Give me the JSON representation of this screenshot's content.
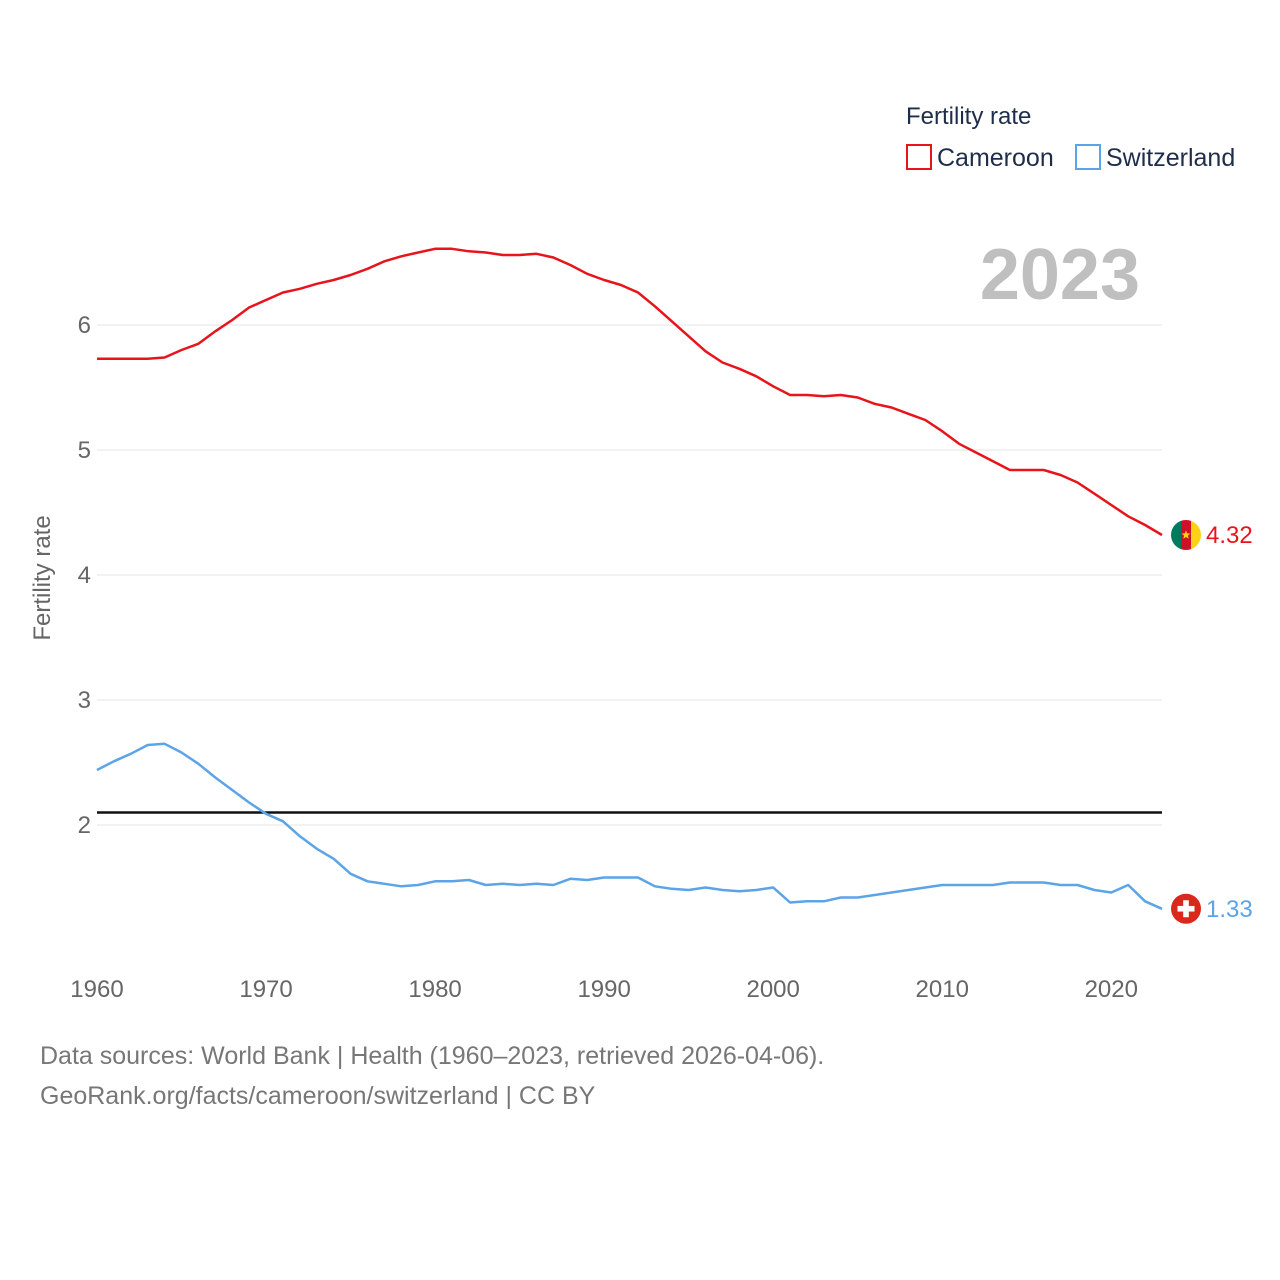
{
  "chart_data": {
    "type": "line",
    "title": "Fertility rate",
    "ylabel": "Fertility rate",
    "xlabel": "",
    "current_year": "2023",
    "xlim": [
      1960,
      2023
    ],
    "ylim": [
      1.0,
      7.0
    ],
    "x_ticks": [
      1960,
      1970,
      1980,
      1990,
      2000,
      2010,
      2020
    ],
    "y_ticks": [
      2,
      3,
      4,
      5,
      6
    ],
    "reference_line": {
      "value": 2.1
    },
    "legend": {
      "title": "Fertility rate",
      "position": "top-right"
    },
    "x": [
      1960,
      1961,
      1962,
      1963,
      1964,
      1965,
      1966,
      1967,
      1968,
      1969,
      1970,
      1971,
      1972,
      1973,
      1974,
      1975,
      1976,
      1977,
      1978,
      1979,
      1980,
      1981,
      1982,
      1983,
      1984,
      1985,
      1986,
      1987,
      1988,
      1989,
      1990,
      1991,
      1992,
      1993,
      1994,
      1995,
      1996,
      1997,
      1998,
      1999,
      2000,
      2001,
      2002,
      2003,
      2004,
      2005,
      2006,
      2007,
      2008,
      2009,
      2010,
      2011,
      2012,
      2013,
      2014,
      2015,
      2016,
      2017,
      2018,
      2019,
      2020,
      2021,
      2022,
      2023
    ],
    "series": [
      {
        "name": "Cameroon",
        "color": "#e8141b",
        "end_label": "4.32",
        "values": [
          5.73,
          5.73,
          5.73,
          5.73,
          5.74,
          5.8,
          5.85,
          5.95,
          6.04,
          6.14,
          6.2,
          6.26,
          6.29,
          6.33,
          6.36,
          6.4,
          6.45,
          6.51,
          6.55,
          6.58,
          6.61,
          6.61,
          6.59,
          6.58,
          6.56,
          6.56,
          6.57,
          6.54,
          6.48,
          6.41,
          6.36,
          6.32,
          6.26,
          6.15,
          6.03,
          5.91,
          5.79,
          5.7,
          5.65,
          5.59,
          5.51,
          5.44,
          5.44,
          5.43,
          5.44,
          5.42,
          5.37,
          5.34,
          5.29,
          5.24,
          5.15,
          5.05,
          4.98,
          4.91,
          4.84,
          4.84,
          4.84,
          4.8,
          4.74,
          4.65,
          4.56,
          4.47,
          4.4,
          4.32
        ]
      },
      {
        "name": "Switzerland",
        "color": "#5ba4e8",
        "end_label": "1.33",
        "values": [
          2.44,
          2.51,
          2.57,
          2.64,
          2.65,
          2.58,
          2.49,
          2.38,
          2.28,
          2.18,
          2.09,
          2.03,
          1.91,
          1.81,
          1.73,
          1.61,
          1.55,
          1.53,
          1.51,
          1.52,
          1.55,
          1.55,
          1.56,
          1.52,
          1.53,
          1.52,
          1.53,
          1.52,
          1.57,
          1.56,
          1.58,
          1.58,
          1.58,
          1.51,
          1.49,
          1.48,
          1.5,
          1.48,
          1.47,
          1.48,
          1.5,
          1.38,
          1.39,
          1.39,
          1.42,
          1.42,
          1.44,
          1.46,
          1.48,
          1.5,
          1.52,
          1.52,
          1.52,
          1.52,
          1.54,
          1.54,
          1.54,
          1.52,
          1.52,
          1.48,
          1.46,
          1.52,
          1.39,
          1.33
        ]
      }
    ]
  },
  "flags": {
    "cameroon": {
      "colors": [
        "#007a5e",
        "#ce1126",
        "#fcd116"
      ],
      "star_color": "#fcd116"
    },
    "switzerland": {
      "colors": [
        "#da291c",
        "#ffffff"
      ]
    }
  },
  "footer": {
    "line1": "Data sources: World Bank | Health (1960–2023, retrieved 2026-04-06).",
    "line2": "GeoRank.org/facts/cameroon/switzerland | CC BY"
  }
}
